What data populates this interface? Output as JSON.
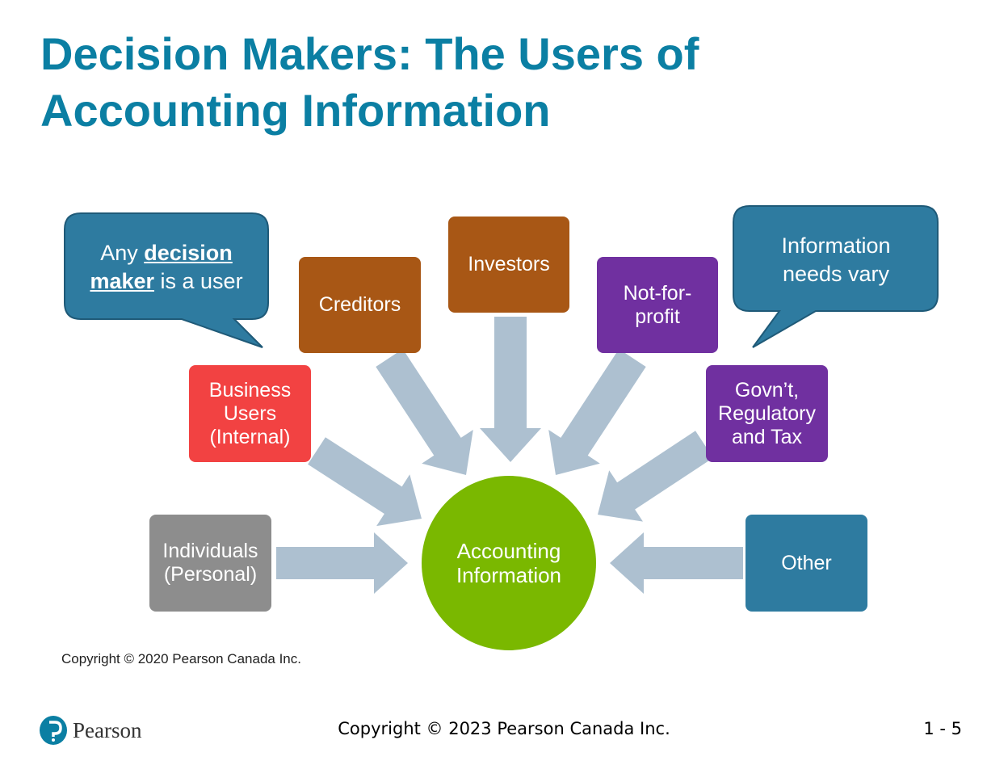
{
  "title_lines": [
    "Decision Makers: The Users of",
    "Accounting Information"
  ],
  "callouts": {
    "left": {
      "pre": "Any ",
      "bold1": "decision",
      "bold2": "maker",
      "post": " is a user"
    },
    "right": {
      "line1": "Information",
      "line2": "needs vary"
    }
  },
  "center": {
    "line1": "Accounting",
    "line2": "Information",
    "color": "#7ab800"
  },
  "users": {
    "creditors": "Creditors",
    "investors": "Investors",
    "not_for_profit": {
      "line1": "Not-for-",
      "line2": "profit"
    },
    "business": {
      "line1": "Business",
      "line2": "Users",
      "line3": "(Internal)"
    },
    "government": {
      "line1": "Govn’t,",
      "line2": "Regulatory",
      "line3": "and Tax"
    },
    "individuals": {
      "line1": "Individuals",
      "line2": "(Personal)"
    },
    "other": "Other"
  },
  "colors": {
    "title": "#0b7fa3",
    "callout": "#2e7ba0",
    "arrow": "#adc0d0",
    "brown": "#a85715",
    "purple": "#7030a0",
    "red": "#f24242",
    "gray": "#8d8d8d"
  },
  "image_copyright": "Copyright © 2020 Pearson Canada Inc.",
  "footer": {
    "logo_text": "Pearson",
    "copyright": "Copyright © 2023 Pearson Canada Inc.",
    "page": "1 - 5"
  }
}
